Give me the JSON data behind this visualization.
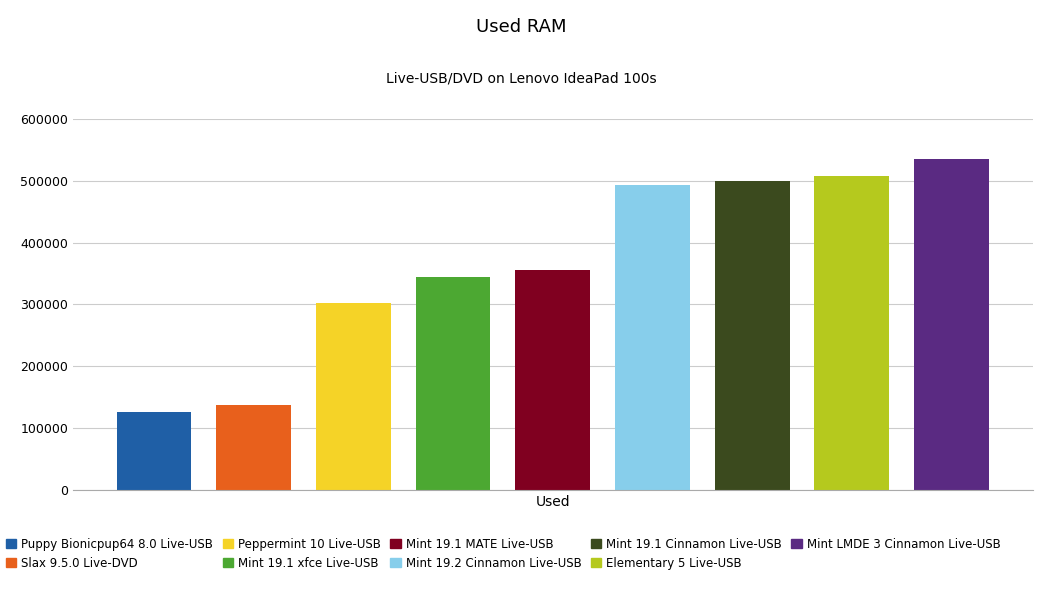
{
  "title": "Used RAM",
  "subtitle": "Live-USB/DVD on Lenovo IdeaPad 100s",
  "xlabel": "Used",
  "ylabel": "",
  "ylim": [
    0,
    600000
  ],
  "yticks": [
    0,
    100000,
    200000,
    300000,
    400000,
    500000,
    600000
  ],
  "ytick_labels": [
    "0",
    "100000",
    "200000",
    "300000",
    "400000",
    "500000",
    "600000"
  ],
  "categories": [
    "Puppy Bionicpup64 8.0 Live-USB",
    "Slax 9.5.0 Live-DVD",
    "Peppermint 10 Live-USB",
    "Mint 19.1 xfce Live-USB",
    "Mint 19.1 MATE Live-USB",
    "Mint 19.2 Cinnamon Live-USB",
    "Mint 19.1 Cinnamon Live-USB",
    "Elementary 5 Live-USB",
    "Mint LMDE 3 Cinnamon Live-USB"
  ],
  "values": [
    125000,
    137000,
    302000,
    344000,
    356000,
    493000,
    500000,
    508000,
    535000
  ],
  "bar_colors": [
    "#1f5fa6",
    "#e8601c",
    "#f5d327",
    "#4ca832",
    "#800020",
    "#87CEEB",
    "#3b4a1e",
    "#b5c91e",
    "#5a2a82"
  ],
  "background_color": "#ffffff",
  "grid_color": "#cccccc",
  "title_fontsize": 13,
  "subtitle_fontsize": 10,
  "tick_fontsize": 9,
  "legend_fontsize": 8.5
}
